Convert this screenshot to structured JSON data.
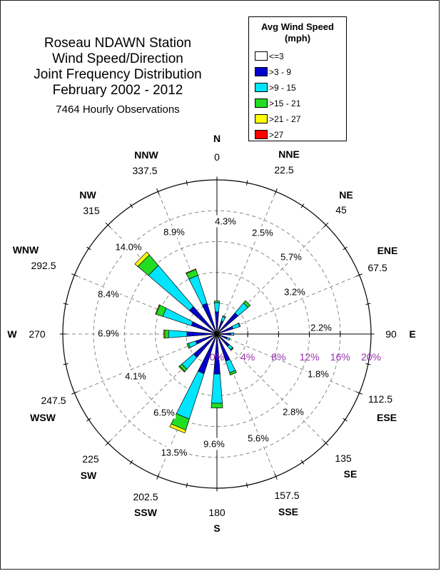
{
  "title_lines": [
    "Roseau NDAWN Station",
    "Wind Speed/Direction",
    "Joint Frequency Distribution",
    "February 2002 - 2012"
  ],
  "subtitle": "7464 Hourly Observations",
  "legend": {
    "title_lines": [
      "Avg Wind Speed",
      "(mph)"
    ],
    "items": [
      {
        "label": "<=3",
        "color": "#ffffff"
      },
      {
        "label": ">3 - 9",
        "color": "#0000cc"
      },
      {
        "label": ">9 - 15",
        "color": "#00e5ff"
      },
      {
        "label": ">15 - 21",
        "color": "#22dd22"
      },
      {
        "label": ">21 - 27",
        "color": "#ffff00"
      },
      {
        "label": ">27",
        "color": "#ff0000"
      }
    ]
  },
  "colors": {
    "grid": "#888888",
    "outline": "#000000",
    "percent_axis": "#9a2fb0"
  },
  "chart_data": {
    "type": "wind_rose",
    "radial_axis": {
      "max_percent": 20,
      "tick_labels": [
        "0%",
        "4%",
        "8%",
        "12%",
        "16%",
        "20%"
      ]
    },
    "directions": [
      {
        "name": "N",
        "degrees_label": "0",
        "angle": 0,
        "percent_label": "4.3%"
      },
      {
        "name": "NNE",
        "degrees_label": "22.5",
        "angle": 22.5,
        "percent_label": "2.5%"
      },
      {
        "name": "NE",
        "degrees_label": "45",
        "angle": 45,
        "percent_label": "5.7%"
      },
      {
        "name": "ENE",
        "degrees_label": "67.5",
        "angle": 67.5,
        "percent_label": "3.2%"
      },
      {
        "name": "E",
        "degrees_label": "90",
        "angle": 90,
        "percent_label": "2.2%"
      },
      {
        "name": "ESE",
        "degrees_label": "112.5",
        "angle": 112.5,
        "percent_label": "1.8%"
      },
      {
        "name": "SE",
        "degrees_label": "135",
        "angle": 135,
        "percent_label": "2.8%"
      },
      {
        "name": "SSE",
        "degrees_label": "157.5",
        "angle": 157.5,
        "percent_label": "5.6%"
      },
      {
        "name": "S",
        "degrees_label": "180",
        "angle": 180,
        "percent_label": "9.6%"
      },
      {
        "name": "SSW",
        "degrees_label": "202.5",
        "angle": 202.5,
        "percent_label": "13.5%"
      },
      {
        "name": "SW",
        "degrees_label": "225",
        "angle": 225,
        "percent_label": "6.5%"
      },
      {
        "name": "WSW",
        "degrees_label": "247.5",
        "angle": 247.5,
        "percent_label": "4.1%"
      },
      {
        "name": "W",
        "degrees_label": "270",
        "angle": 270,
        "percent_label": "6.9%"
      },
      {
        "name": "WNW",
        "degrees_label": "292.5",
        "angle": 292.5,
        "percent_label": "8.4%"
      },
      {
        "name": "NW",
        "degrees_label": "315",
        "angle": 315,
        "percent_label": "14.0%"
      },
      {
        "name": "NNW",
        "degrees_label": "337.5",
        "angle": 337.5,
        "percent_label": "8.9%"
      }
    ],
    "series": [
      {
        "name": "<=3",
        "values": [
          0.3,
          0.2,
          0.3,
          0.2,
          0.2,
          0.2,
          0.2,
          0.3,
          0.4,
          0.4,
          0.3,
          0.2,
          0.3,
          0.3,
          0.4,
          0.3
        ]
      },
      {
        "name": ">3 - 9",
        "values": [
          2.6,
          1.6,
          3.3,
          2.0,
          1.6,
          1.2,
          1.9,
          3.4,
          4.8,
          5.0,
          3.7,
          2.7,
          3.6,
          3.2,
          4.3,
          3.9
        ]
      },
      {
        "name": ">9 - 15",
        "values": [
          1.2,
          0.6,
          1.7,
          0.9,
          0.4,
          0.4,
          0.6,
          1.6,
          3.8,
          6.2,
          2.0,
          1.0,
          2.4,
          3.9,
          7.0,
          3.8
        ]
      },
      {
        "name": ">15 - 21",
        "values": [
          0.2,
          0.1,
          0.4,
          0.1,
          0.0,
          0.0,
          0.1,
          0.3,
          0.6,
          1.5,
          0.4,
          0.2,
          0.5,
          0.9,
          1.8,
          0.8
        ]
      },
      {
        "name": ">21 - 27",
        "values": [
          0.0,
          0.0,
          0.0,
          0.0,
          0.0,
          0.0,
          0.0,
          0.0,
          0.0,
          0.4,
          0.1,
          0.0,
          0.1,
          0.1,
          0.5,
          0.1
        ]
      },
      {
        "name": ">27",
        "values": [
          0.0,
          0.0,
          0.0,
          0.0,
          0.0,
          0.0,
          0.0,
          0.0,
          0.0,
          0.0,
          0.0,
          0.0,
          0.0,
          0.0,
          0.0,
          0.0
        ]
      }
    ]
  }
}
